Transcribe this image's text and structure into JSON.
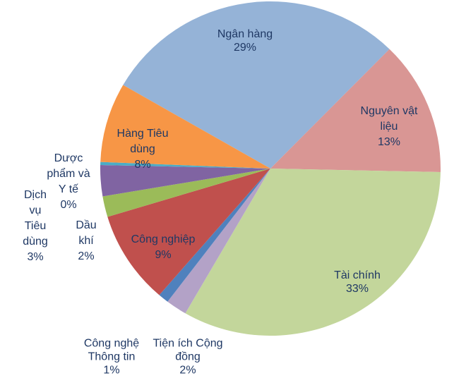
{
  "background_color": "#FFFFFF",
  "label_text_color": "#1F3864",
  "chart_data": {
    "type": "pie",
    "title": "",
    "legend": "none",
    "unit": "%",
    "direction": "clockwise",
    "start_angle_deg": -60,
    "categories": [
      "Ngân hàng",
      "Nguyên vật liệu",
      "Tài chính",
      "Tiện ích Cộng đồng",
      "Công nghệ Thông tin",
      "Công nghiệp",
      "Dầu khí",
      "Dịch vụ Tiêu dùng",
      "Dược phẩm và Y tế",
      "Hàng Tiêu dùng"
    ],
    "values": [
      29,
      13,
      33,
      2,
      1,
      9,
      2,
      3,
      0,
      8
    ],
    "slices": [
      {
        "label": "Ngân hàng",
        "value_pct": 29,
        "color": "#95B3D7",
        "label_lines": [
          "Ngân hàng",
          "29%"
        ]
      },
      {
        "label": "Nguyên vật liệu",
        "value_pct": 13,
        "color": "#D99694",
        "label_lines": [
          "Nguyên vật",
          "liệu",
          "13%"
        ]
      },
      {
        "label": "Tài chính",
        "value_pct": 33,
        "color": "#C3D69B",
        "label_lines": [
          "Tài chính",
          "33%"
        ]
      },
      {
        "label": "Tiện ích Cộng đồng",
        "value_pct": 2,
        "color": "#B3A2C7",
        "label_lines": [
          "Tiện ích Cộng",
          "đồng",
          "2%"
        ]
      },
      {
        "label": "Công nghệ Thông tin",
        "value_pct": 1,
        "color": "#4F81BD",
        "label_lines": [
          "Công nghệ",
          "Thông tin",
          "1%"
        ]
      },
      {
        "label": "Công nghiệp",
        "value_pct": 9,
        "color": "#C0504D",
        "label_lines": [
          "Công nghiệp",
          "9%"
        ]
      },
      {
        "label": "Dầu khí",
        "value_pct": 2,
        "color": "#9BBB59",
        "label_lines": [
          "Dầu",
          "khí",
          "2%"
        ]
      },
      {
        "label": "Dịch vụ Tiêu dùng",
        "value_pct": 3,
        "color": "#8064A2",
        "label_lines": [
          "Dịch",
          "vụ",
          "Tiêu",
          "dùng",
          "3%"
        ]
      },
      {
        "label": "Dược phẩm và Y tế",
        "value_pct": 0,
        "color": "#4BACC6",
        "label_lines": [
          "Dược",
          "phẩm và",
          "Y tế",
          "0%"
        ]
      },
      {
        "label": "Hàng Tiêu dùng",
        "value_pct": 8,
        "color": "#F79646",
        "label_lines": [
          "Hàng Tiêu",
          "dùng",
          "8%"
        ]
      }
    ]
  }
}
